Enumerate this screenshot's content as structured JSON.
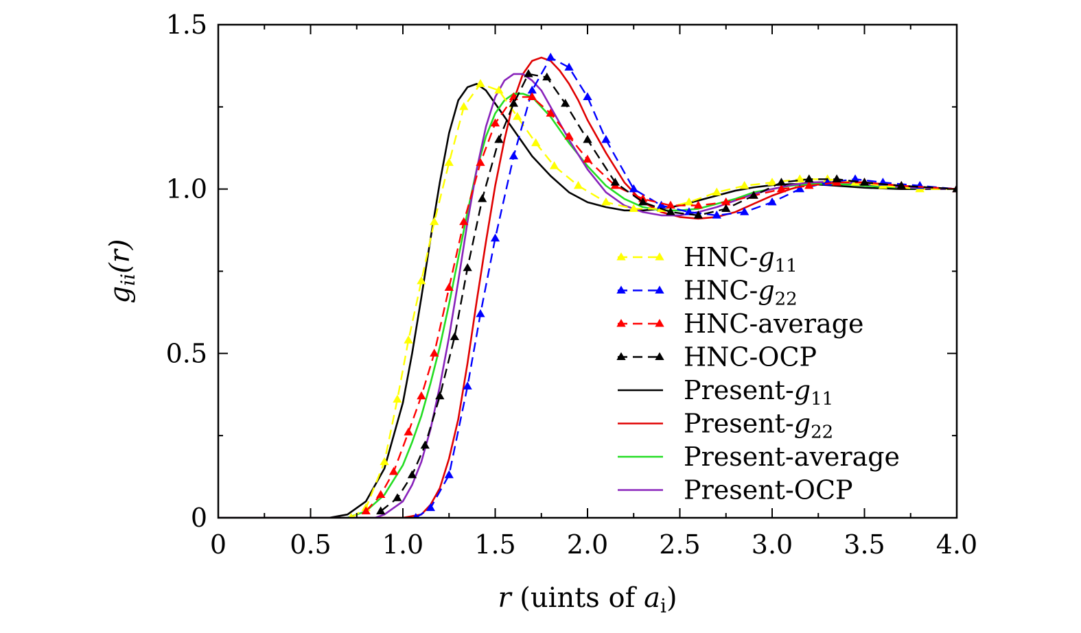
{
  "chart_data": {
    "type": "line",
    "title": "",
    "xlabel": {
      "var": "r",
      "text": " (uints of ",
      "sub_var": "a",
      "sub": "i",
      "close": ")"
    },
    "ylabel": {
      "var": "g",
      "sub": "ii",
      "arg": "(r)"
    },
    "xlim": [
      0,
      4.0
    ],
    "ylim": [
      0,
      1.5
    ],
    "xticks": [
      0,
      0.5,
      1.0,
      1.5,
      2.0,
      2.5,
      3.0,
      3.5,
      4.0
    ],
    "xtick_labels": [
      "0",
      "0.5",
      "1.0",
      "1.5",
      "2.0",
      "2.5",
      "3.0",
      "3.5",
      "4.0"
    ],
    "yticks": [
      0,
      0.5,
      1.0,
      1.5
    ],
    "ytick_labels": [
      "0",
      "0.5",
      "1.0",
      "1.5"
    ],
    "legend_position": "center-right",
    "series": [
      {
        "name": "HNC-g11",
        "label_main": "HNC-",
        "label_var": "g",
        "label_sub": "11",
        "style": "dashed-triangle",
        "color": "#ffff00",
        "x": [
          0.72,
          0.8,
          0.9,
          0.97,
          1.03,
          1.1,
          1.17,
          1.25,
          1.33,
          1.42,
          1.52,
          1.62,
          1.72,
          1.82,
          1.95,
          2.1,
          2.25,
          2.4,
          2.55,
          2.7,
          2.85,
          3.0,
          3.15,
          3.3,
          3.45,
          3.6,
          3.8,
          4.0
        ],
        "y": [
          0.0,
          0.03,
          0.17,
          0.36,
          0.54,
          0.72,
          0.9,
          1.08,
          1.25,
          1.32,
          1.3,
          1.22,
          1.14,
          1.07,
          1.01,
          0.96,
          0.94,
          0.94,
          0.96,
          0.99,
          1.01,
          1.02,
          1.03,
          1.03,
          1.02,
          1.01,
          1.0,
          1.0
        ]
      },
      {
        "name": "HNC-g22",
        "label_main": "HNC-",
        "label_var": "g",
        "label_sub": "22",
        "style": "dashed-triangle",
        "color": "#0000ff",
        "x": [
          1.07,
          1.15,
          1.25,
          1.35,
          1.42,
          1.5,
          1.6,
          1.7,
          1.8,
          1.9,
          2.0,
          2.1,
          2.25,
          2.4,
          2.55,
          2.7,
          2.85,
          3.0,
          3.15,
          3.3,
          3.45,
          3.6,
          3.8,
          4.0
        ],
        "y": [
          0.0,
          0.03,
          0.13,
          0.4,
          0.62,
          0.85,
          1.1,
          1.3,
          1.4,
          1.37,
          1.28,
          1.15,
          1.0,
          0.95,
          0.93,
          0.92,
          0.93,
          0.96,
          1.0,
          1.02,
          1.03,
          1.02,
          1.01,
          1.0
        ]
      },
      {
        "name": "HNC-average",
        "label_main": "HNC-average",
        "label_var": "",
        "label_sub": "",
        "style": "dashed-triangle",
        "color": "#ff0000",
        "x": [
          0.8,
          0.88,
          0.95,
          1.03,
          1.1,
          1.17,
          1.25,
          1.33,
          1.42,
          1.5,
          1.6,
          1.7,
          1.8,
          1.9,
          2.0,
          2.15,
          2.3,
          2.45,
          2.6,
          2.75,
          2.9,
          3.05,
          3.2,
          3.35,
          3.5,
          3.7,
          4.0
        ],
        "y": [
          0.02,
          0.07,
          0.14,
          0.26,
          0.37,
          0.5,
          0.7,
          0.9,
          1.08,
          1.2,
          1.28,
          1.28,
          1.23,
          1.16,
          1.09,
          1.01,
          0.97,
          0.95,
          0.95,
          0.96,
          0.98,
          1.0,
          1.01,
          1.02,
          1.02,
          1.01,
          1.0
        ]
      },
      {
        "name": "HNC-OCP",
        "label_main": "HNC-OCP",
        "label_var": "",
        "label_sub": "",
        "style": "dashed-triangle",
        "color": "#000000",
        "x": [
          0.88,
          0.97,
          1.05,
          1.12,
          1.2,
          1.28,
          1.35,
          1.43,
          1.52,
          1.6,
          1.68,
          1.78,
          1.88,
          2.0,
          2.15,
          2.3,
          2.45,
          2.6,
          2.75,
          2.9,
          3.05,
          3.2,
          3.35,
          3.5,
          3.7,
          4.0
        ],
        "y": [
          0.02,
          0.06,
          0.13,
          0.22,
          0.37,
          0.55,
          0.76,
          0.97,
          1.15,
          1.26,
          1.35,
          1.34,
          1.26,
          1.15,
          1.02,
          0.96,
          0.93,
          0.92,
          0.94,
          0.98,
          1.02,
          1.03,
          1.03,
          1.02,
          1.01,
          1.0
        ]
      },
      {
        "name": "Present-g11",
        "label_main": "Present-",
        "label_var": "g",
        "label_sub": "11",
        "style": "solid",
        "color": "#000000",
        "x": [
          0,
          0.6,
          0.7,
          0.8,
          0.9,
          1.0,
          1.05,
          1.1,
          1.15,
          1.2,
          1.25,
          1.3,
          1.35,
          1.4,
          1.45,
          1.5,
          1.6,
          1.7,
          1.8,
          1.9,
          2.0,
          2.1,
          2.2,
          2.3,
          2.4,
          2.5,
          2.6,
          2.7,
          2.8,
          2.9,
          3.0,
          3.1,
          3.2,
          3.3,
          3.4,
          3.5,
          3.6,
          3.7,
          3.8,
          3.9,
          4.0
        ],
        "y": [
          0,
          0.0,
          0.01,
          0.05,
          0.15,
          0.35,
          0.5,
          0.67,
          0.85,
          1.02,
          1.17,
          1.27,
          1.31,
          1.32,
          1.3,
          1.26,
          1.18,
          1.1,
          1.04,
          0.99,
          0.96,
          0.945,
          0.935,
          0.935,
          0.94,
          0.95,
          0.965,
          0.98,
          0.995,
          1.005,
          1.012,
          1.015,
          1.015,
          1.012,
          1.008,
          1.004,
          1.002,
          1.0,
          1.0,
          1.0,
          1.0
        ]
      },
      {
        "name": "Present-g22",
        "label_main": "Present-",
        "label_var": "g",
        "label_sub": "22",
        "style": "solid",
        "color": "#e00000",
        "x": [
          0,
          1.0,
          1.1,
          1.15,
          1.2,
          1.25,
          1.3,
          1.35,
          1.4,
          1.45,
          1.5,
          1.55,
          1.6,
          1.65,
          1.7,
          1.75,
          1.8,
          1.85,
          1.9,
          1.95,
          2.0,
          2.1,
          2.2,
          2.3,
          2.4,
          2.5,
          2.6,
          2.7,
          2.8,
          2.9,
          3.0,
          3.1,
          3.2,
          3.3,
          3.4,
          3.5,
          3.6,
          3.7,
          3.8,
          3.9,
          4.0
        ],
        "y": [
          0,
          0.0,
          0.01,
          0.04,
          0.09,
          0.18,
          0.3,
          0.47,
          0.66,
          0.84,
          1.01,
          1.15,
          1.27,
          1.35,
          1.39,
          1.4,
          1.39,
          1.36,
          1.32,
          1.27,
          1.21,
          1.11,
          1.02,
          0.96,
          0.93,
          0.915,
          0.91,
          0.915,
          0.93,
          0.955,
          0.98,
          1.0,
          1.015,
          1.02,
          1.022,
          1.02,
          1.015,
          1.01,
          1.006,
          1.003,
          1.0
        ]
      },
      {
        "name": "Present-average",
        "label_main": "Present-average",
        "label_var": "",
        "label_sub": "",
        "style": "solid",
        "color": "#22dd22",
        "x": [
          0,
          0.7,
          0.8,
          0.9,
          1.0,
          1.05,
          1.1,
          1.15,
          1.2,
          1.25,
          1.3,
          1.35,
          1.4,
          1.45,
          1.5,
          1.55,
          1.6,
          1.65,
          1.7,
          1.75,
          1.8,
          1.9,
          2.0,
          2.1,
          2.2,
          2.3,
          2.4,
          2.5,
          2.6,
          2.7,
          2.8,
          2.9,
          3.0,
          3.1,
          3.2,
          3.3,
          3.4,
          3.5,
          3.6,
          3.7,
          3.8,
          3.9,
          4.0
        ],
        "y": [
          0,
          0.0,
          0.02,
          0.07,
          0.16,
          0.23,
          0.31,
          0.41,
          0.52,
          0.65,
          0.79,
          0.93,
          1.06,
          1.16,
          1.23,
          1.27,
          1.29,
          1.29,
          1.28,
          1.25,
          1.22,
          1.14,
          1.07,
          1.01,
          0.97,
          0.945,
          0.935,
          0.935,
          0.94,
          0.955,
          0.97,
          0.99,
          1.0,
          1.01,
          1.015,
          1.016,
          1.014,
          1.01,
          1.007,
          1.004,
          1.002,
          1.001,
          1.0
        ]
      },
      {
        "name": "Present-OCP",
        "label_main": "Present-OCP",
        "label_var": "",
        "label_sub": "",
        "style": "solid",
        "color": "#8822bb",
        "x": [
          0,
          0.85,
          0.9,
          1.0,
          1.05,
          1.1,
          1.15,
          1.2,
          1.25,
          1.3,
          1.35,
          1.4,
          1.45,
          1.5,
          1.55,
          1.6,
          1.65,
          1.7,
          1.75,
          1.8,
          1.9,
          2.0,
          2.1,
          2.2,
          2.3,
          2.4,
          2.5,
          2.6,
          2.7,
          2.8,
          2.9,
          3.0,
          3.1,
          3.2,
          3.3,
          3.4,
          3.5,
          3.6,
          3.7,
          3.8,
          3.9,
          4.0
        ],
        "y": [
          0,
          0.0,
          0.01,
          0.05,
          0.1,
          0.17,
          0.27,
          0.4,
          0.55,
          0.72,
          0.9,
          1.06,
          1.19,
          1.28,
          1.33,
          1.35,
          1.35,
          1.33,
          1.3,
          1.25,
          1.15,
          1.06,
          0.99,
          0.95,
          0.93,
          0.92,
          0.92,
          0.93,
          0.945,
          0.965,
          0.985,
          1.0,
          1.012,
          1.02,
          1.022,
          1.02,
          1.015,
          1.01,
          1.006,
          1.003,
          1.001,
          1.0
        ]
      }
    ]
  }
}
